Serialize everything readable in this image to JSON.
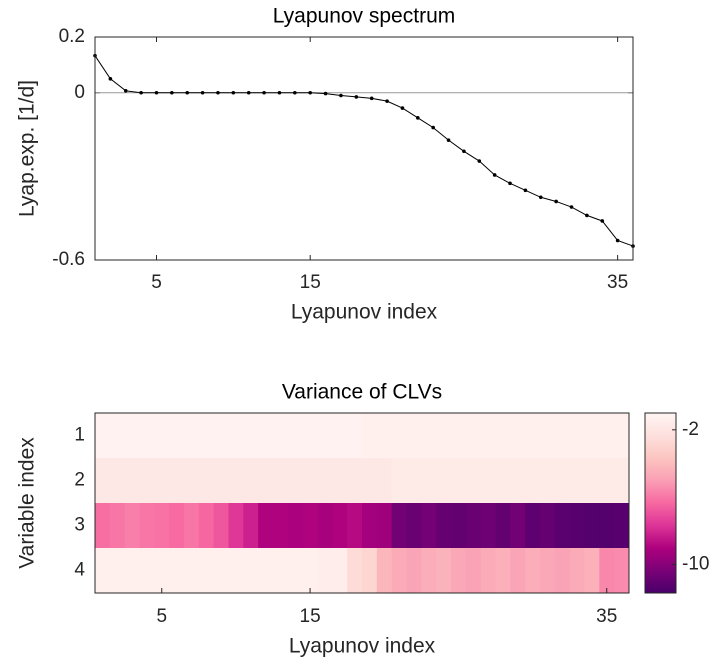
{
  "chart_data": [
    {
      "type": "line",
      "title": "Lyapunov spectrum",
      "x_label": "Lyapunov index",
      "y_label": "Lyap.exp. [1/d]",
      "x": [
        1,
        2,
        3,
        4,
        5,
        6,
        7,
        8,
        9,
        10,
        11,
        12,
        13,
        14,
        15,
        16,
        17,
        18,
        19,
        20,
        21,
        22,
        23,
        24,
        25,
        26,
        27,
        28,
        29,
        30,
        31,
        32,
        33,
        34,
        35,
        36
      ],
      "values": [
        0.133,
        0.05,
        0.007,
        0,
        0,
        0,
        0,
        0,
        0,
        0,
        0,
        0,
        0,
        0,
        0,
        -0.003,
        -0.01,
        -0.015,
        -0.02,
        -0.03,
        -0.055,
        -0.09,
        -0.125,
        -0.17,
        -0.21,
        -0.245,
        -0.295,
        -0.325,
        -0.35,
        -0.375,
        -0.39,
        -0.41,
        -0.44,
        -0.46,
        -0.53,
        -0.55
      ],
      "color": "#000000",
      "zero_line_color": "#999999",
      "xlim": [
        1,
        36
      ],
      "xticks": [
        5,
        15,
        35
      ],
      "ylim": [
        -0.6,
        0.2
      ],
      "yticks": [
        -0.6,
        0,
        0.2
      ]
    },
    {
      "type": "heatmap",
      "title": "Variance of CLVs",
      "x_label": "Lyapunov index",
      "y_label": "Variable index",
      "xlim": [
        0.5,
        36.5
      ],
      "xticks": [
        5,
        15,
        35
      ],
      "rows": [
        "1",
        "2",
        "3",
        "4"
      ],
      "values": [
        [
          -1.2,
          -1.2,
          -1.2,
          -1.2,
          -1.2,
          -1.2,
          -1.2,
          -1.2,
          -1.2,
          -1.2,
          -1.2,
          -1.2,
          -1.2,
          -1.2,
          -1.2,
          -1.2,
          -1.2,
          -1.2,
          -1.3,
          -1.3,
          -1.3,
          -1.3,
          -1.3,
          -1.3,
          -1.3,
          -1.3,
          -1.3,
          -1.3,
          -1.3,
          -1.3,
          -1.3,
          -1.3,
          -1.3,
          -1.3,
          -1.3,
          -1.3
        ],
        [
          -1.8,
          -1.8,
          -1.8,
          -1.8,
          -1.8,
          -1.8,
          -1.8,
          -1.8,
          -1.8,
          -1.8,
          -1.8,
          -1.8,
          -1.8,
          -1.8,
          -1.8,
          -1.8,
          -1.8,
          -1.8,
          -1.8,
          -1.8,
          -1.7,
          -1.7,
          -1.7,
          -1.7,
          -1.7,
          -1.7,
          -1.7,
          -1.7,
          -1.7,
          -1.7,
          -1.7,
          -1.7,
          -1.7,
          -1.7,
          -1.7,
          -1.7
        ],
        [
          -6.2,
          -6.0,
          -5.8,
          -6.0,
          -6.1,
          -6.3,
          -6.0,
          -6.4,
          -6.8,
          -7.6,
          -8.2,
          -9.0,
          -9.0,
          -9.1,
          -9.0,
          -9.2,
          -9.0,
          -8.8,
          -9.3,
          -9.4,
          -10.6,
          -10.8,
          -10.5,
          -10.9,
          -11.0,
          -10.8,
          -10.7,
          -11.0,
          -10.6,
          -11.1,
          -10.9,
          -11.2,
          -11.3,
          -11.4,
          -11.4,
          -11.3
        ],
        [
          -1.3,
          -1.3,
          -1.3,
          -1.3,
          -1.3,
          -1.3,
          -1.3,
          -1.3,
          -1.3,
          -1.3,
          -1.3,
          -1.3,
          -1.3,
          -1.3,
          -1.3,
          -1.5,
          -1.5,
          -2.6,
          -2.9,
          -4.2,
          -4.6,
          -4.8,
          -4.5,
          -4.3,
          -4.7,
          -4.9,
          -4.6,
          -4.4,
          -4.8,
          -4.5,
          -4.7,
          -4.9,
          -4.6,
          -4.4,
          -5.6,
          -5.5
        ]
      ],
      "clim": [
        -11.7,
        -1
      ],
      "cticks": [
        -10,
        -2
      ],
      "colormap": [
        "#49006a",
        "#7a0177",
        "#ae017e",
        "#dd3497",
        "#f768a1",
        "#fa9fb5",
        "#fcc5c0",
        "#fde0dd",
        "#fff5f3"
      ]
    }
  ]
}
